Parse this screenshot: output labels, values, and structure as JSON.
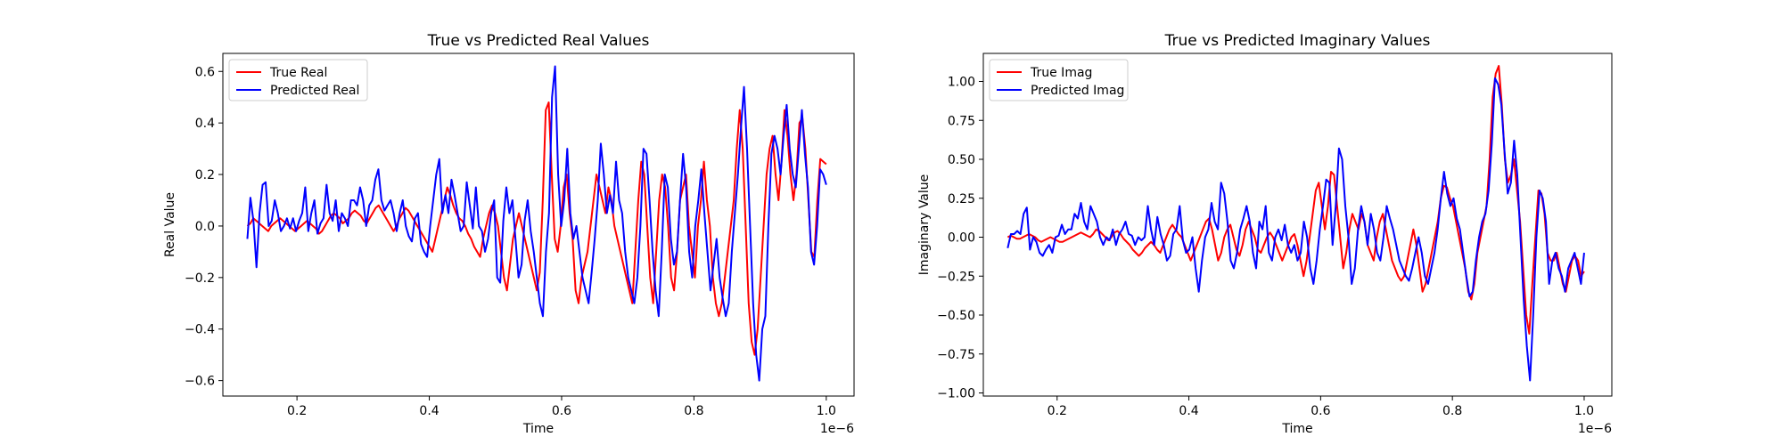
{
  "chart_data": [
    {
      "type": "line",
      "title": "True vs Predicted Real Values",
      "xlabel": "Time",
      "ylabel": "Real Value",
      "x_offset_text": "1e−6",
      "xlim": [
        0.088,
        1.042
      ],
      "ylim": [
        -0.66,
        0.67
      ],
      "xticks": [
        0.2,
        0.4,
        0.6,
        0.8,
        1.0
      ],
      "xtick_labels": [
        "0.2",
        "0.4",
        "0.6",
        "0.8",
        "1.0"
      ],
      "yticks": [
        -0.6,
        -0.4,
        -0.2,
        0.0,
        0.2,
        0.4,
        0.6
      ],
      "ytick_labels": [
        "−0.6",
        "−0.4",
        "−0.2",
        "0.0",
        "0.2",
        "0.4",
        "0.6"
      ],
      "legend_position": "upper-left",
      "x_start": 0.125,
      "x_end": 1.0,
      "series": [
        {
          "name": "True Real",
          "color": "#ff0000",
          "values": [
            0.0,
            0.01,
            0.03,
            0.02,
            0.01,
            0.0,
            -0.01,
            -0.02,
            0.0,
            0.01,
            0.02,
            0.03,
            0.02,
            0.01,
            0.0,
            -0.01,
            -0.02,
            -0.01,
            0.0,
            0.01,
            0.02,
            0.01,
            0.0,
            -0.01,
            -0.03,
            -0.02,
            0.0,
            0.02,
            0.04,
            0.05,
            0.04,
            0.03,
            0.01,
            0.02,
            0.03,
            0.05,
            0.06,
            0.05,
            0.04,
            0.02,
            0.01,
            0.03,
            0.05,
            0.07,
            0.08,
            0.06,
            0.04,
            0.02,
            0.0,
            -0.02,
            0.0,
            0.03,
            0.05,
            0.07,
            0.06,
            0.04,
            0.02,
            0.0,
            -0.02,
            -0.04,
            -0.06,
            -0.08,
            -0.1,
            -0.05,
            0.0,
            0.05,
            0.1,
            0.15,
            0.12,
            0.08,
            0.05,
            0.03,
            0.02,
            0.0,
            -0.03,
            -0.05,
            -0.08,
            -0.1,
            -0.12,
            -0.05,
            0.0,
            0.05,
            0.08,
            0.05,
            0.0,
            -0.1,
            -0.2,
            -0.25,
            -0.15,
            -0.05,
            0.0,
            0.05,
            0.0,
            -0.05,
            -0.1,
            -0.15,
            -0.2,
            -0.25,
            -0.18,
            0.1,
            0.45,
            0.48,
            0.2,
            -0.05,
            -0.1,
            0.0,
            0.15,
            0.2,
            0.05,
            -0.05,
            -0.25,
            -0.3,
            -0.2,
            -0.15,
            -0.1,
            0.0,
            0.1,
            0.2,
            0.15,
            0.1,
            0.05,
            0.15,
            0.1,
            0.0,
            -0.05,
            -0.1,
            -0.15,
            -0.2,
            -0.25,
            -0.3,
            -0.1,
            0.1,
            0.25,
            0.2,
            0.0,
            -0.2,
            -0.3,
            -0.1,
            0.1,
            0.2,
            0.15,
            0.0,
            -0.2,
            -0.25,
            -0.1,
            0.1,
            0.15,
            0.2,
            0.0,
            -0.1,
            -0.2,
            0.0,
            0.1,
            0.25,
            0.1,
            0.0,
            -0.2,
            -0.3,
            -0.35,
            -0.3,
            -0.2,
            -0.1,
            0.0,
            0.1,
            0.3,
            0.45,
            0.3,
            0.0,
            -0.3,
            -0.45,
            -0.5,
            -0.4,
            -0.2,
            0.0,
            0.2,
            0.3,
            0.35,
            0.2,
            0.1,
            0.25,
            0.45,
            0.35,
            0.2,
            0.1,
            0.2,
            0.4,
            0.42,
            0.3,
            0.1,
            -0.1,
            -0.12,
            0.1,
            0.26,
            0.25,
            0.24
          ]
        },
        {
          "name": "Predicted Real",
          "color": "#0000ff",
          "values": [
            -0.05,
            0.11,
            0.02,
            -0.16,
            0.05,
            0.16,
            0.17,
            0.0,
            0.02,
            0.1,
            0.05,
            -0.02,
            0.0,
            0.03,
            -0.01,
            0.03,
            -0.02,
            0.02,
            0.05,
            0.15,
            -0.02,
            0.05,
            0.1,
            -0.03,
            0.01,
            0.03,
            0.16,
            0.05,
            0.02,
            0.1,
            -0.02,
            0.05,
            0.03,
            0.0,
            0.1,
            0.1,
            0.08,
            0.15,
            0.1,
            0.0,
            0.08,
            0.1,
            0.18,
            0.22,
            0.1,
            0.06,
            0.08,
            0.1,
            0.05,
            -0.02,
            0.05,
            0.1,
            0.0,
            -0.04,
            -0.06,
            0.03,
            0.05,
            -0.07,
            -0.1,
            -0.12,
            0.0,
            0.1,
            0.2,
            0.26,
            0.05,
            0.12,
            0.05,
            0.18,
            0.12,
            0.05,
            -0.02,
            0.0,
            0.17,
            0.08,
            -0.01,
            0.15,
            0.0,
            -0.02,
            -0.1,
            -0.05,
            0.05,
            0.1,
            -0.2,
            -0.22,
            0.02,
            0.15,
            0.05,
            0.1,
            -0.05,
            -0.2,
            -0.15,
            0.02,
            0.1,
            -0.02,
            -0.1,
            -0.2,
            -0.3,
            -0.35,
            -0.1,
            0.05,
            0.5,
            0.62,
            0.2,
            0.0,
            0.1,
            0.3,
            0.05,
            -0.05,
            0.0,
            -0.1,
            -0.2,
            -0.25,
            -0.3,
            -0.18,
            -0.05,
            0.1,
            0.32,
            0.2,
            0.05,
            0.12,
            0.05,
            0.25,
            0.1,
            0.05,
            -0.1,
            -0.2,
            -0.25,
            -0.3,
            -0.2,
            0.0,
            0.3,
            0.28,
            0.1,
            -0.1,
            -0.25,
            -0.35,
            -0.1,
            0.2,
            0.15,
            -0.05,
            -0.15,
            -0.1,
            0.1,
            0.28,
            0.15,
            -0.1,
            -0.2,
            0.0,
            0.1,
            0.22,
            0.05,
            -0.1,
            -0.25,
            -0.15,
            -0.05,
            -0.2,
            -0.28,
            -0.35,
            -0.3,
            -0.1,
            0.05,
            0.2,
            0.38,
            0.54,
            0.3,
            0.0,
            -0.3,
            -0.5,
            -0.6,
            -0.4,
            -0.35,
            0.0,
            0.28,
            0.35,
            0.3,
            0.2,
            0.35,
            0.47,
            0.3,
            0.2,
            0.15,
            0.3,
            0.45,
            0.28,
            0.15,
            -0.1,
            -0.15,
            0.0,
            0.22,
            0.2,
            0.16
          ]
        }
      ]
    },
    {
      "type": "line",
      "title": "True vs Predicted Imaginary Values",
      "xlabel": "Time",
      "ylabel": "Imaginary Value",
      "x_offset_text": "1e−6",
      "xlim": [
        0.088,
        1.042
      ],
      "ylim": [
        -1.02,
        1.18
      ],
      "xticks": [
        0.2,
        0.4,
        0.6,
        0.8,
        1.0
      ],
      "xtick_labels": [
        "0.2",
        "0.4",
        "0.6",
        "0.8",
        "1.0"
      ],
      "yticks": [
        -1.0,
        -0.75,
        -0.5,
        -0.25,
        0.0,
        0.25,
        0.5,
        0.75,
        1.0
      ],
      "ytick_labels": [
        "−1.00",
        "−0.75",
        "−0.50",
        "−0.25",
        "0.00",
        "0.25",
        "0.50",
        "0.75",
        "1.00"
      ],
      "legend_position": "upper-left",
      "x_start": 0.125,
      "x_end": 1.0,
      "series": [
        {
          "name": "True Imag",
          "color": "#ff0000",
          "values": [
            0.0,
            0.01,
            0.0,
            -0.01,
            -0.01,
            0.0,
            0.01,
            0.02,
            0.01,
            0.0,
            -0.02,
            -0.03,
            -0.02,
            -0.01,
            0.0,
            -0.01,
            -0.02,
            -0.03,
            -0.03,
            -0.02,
            -0.01,
            0.0,
            0.01,
            0.02,
            0.03,
            0.02,
            0.01,
            0.0,
            0.02,
            0.05,
            0.04,
            0.02,
            0.0,
            -0.02,
            0.0,
            0.03,
            0.04,
            0.02,
            -0.01,
            -0.03,
            -0.05,
            -0.08,
            -0.1,
            -0.12,
            -0.1,
            -0.07,
            -0.05,
            -0.03,
            -0.05,
            -0.08,
            -0.1,
            -0.05,
            0.0,
            0.05,
            0.08,
            0.05,
            0.02,
            0.0,
            -0.05,
            -0.1,
            -0.15,
            -0.1,
            -0.05,
            0.0,
            0.05,
            0.1,
            0.12,
            0.05,
            -0.05,
            -0.15,
            -0.1,
            0.0,
            0.05,
            0.08,
            0.0,
            -0.08,
            -0.12,
            -0.05,
            0.05,
            0.1,
            0.05,
            0.0,
            -0.08,
            -0.1,
            -0.05,
            0.0,
            0.03,
            0.0,
            -0.05,
            -0.1,
            -0.15,
            -0.1,
            -0.05,
            0.0,
            0.02,
            -0.05,
            -0.15,
            -0.25,
            -0.15,
            0.0,
            0.15,
            0.3,
            0.35,
            0.2,
            0.05,
            0.2,
            0.42,
            0.4,
            0.2,
            0.0,
            -0.2,
            -0.1,
            0.05,
            0.15,
            0.1,
            0.05,
            0.15,
            0.1,
            -0.05,
            -0.1,
            -0.15,
            0.0,
            0.1,
            0.15,
            0.05,
            -0.05,
            -0.15,
            -0.2,
            -0.25,
            -0.28,
            -0.25,
            -0.15,
            -0.05,
            0.05,
            -0.05,
            -0.2,
            -0.35,
            -0.3,
            -0.2,
            -0.1,
            0.0,
            0.1,
            0.25,
            0.33,
            0.32,
            0.25,
            0.2,
            0.1,
            0.0,
            -0.1,
            -0.2,
            -0.35,
            -0.4,
            -0.3,
            -0.1,
            0.0,
            0.1,
            0.2,
            0.5,
            0.9,
            1.05,
            1.1,
            0.85,
            0.5,
            0.35,
            0.4,
            0.5,
            0.3,
            0.1,
            -0.2,
            -0.5,
            -0.62,
            -0.3,
            0.0,
            0.3,
            0.28,
            0.15,
            -0.1,
            -0.15,
            -0.15,
            -0.1,
            -0.2,
            -0.3,
            -0.35,
            -0.25,
            -0.15,
            -0.12,
            -0.15,
            -0.25,
            -0.22
          ]
        },
        {
          "name": "Predicted Imag",
          "color": "#0000ff",
          "values": [
            -0.07,
            0.02,
            0.02,
            0.04,
            0.02,
            0.15,
            0.19,
            -0.08,
            0.0,
            -0.03,
            -0.1,
            -0.12,
            -0.08,
            -0.05,
            -0.1,
            0.0,
            0.01,
            0.08,
            0.02,
            0.05,
            0.05,
            0.15,
            0.12,
            0.22,
            0.1,
            0.05,
            0.2,
            0.15,
            0.1,
            0.0,
            -0.05,
            0.0,
            -0.02,
            0.05,
            -0.05,
            0.02,
            0.05,
            0.1,
            0.02,
            0.01,
            -0.05,
            0.0,
            -0.02,
            0.0,
            0.2,
            0.05,
            -0.05,
            0.13,
            0.02,
            -0.05,
            -0.15,
            -0.12,
            0.02,
            0.05,
            0.2,
            -0.02,
            -0.1,
            -0.08,
            0.0,
            -0.2,
            -0.35,
            -0.15,
            0.0,
            0.05,
            0.22,
            0.1,
            0.05,
            0.35,
            0.28,
            0.1,
            -0.15,
            -0.2,
            -0.1,
            0.05,
            0.12,
            0.2,
            0.1,
            -0.1,
            -0.2,
            0.1,
            0.05,
            0.2,
            -0.1,
            -0.15,
            0.0,
            0.05,
            -0.02,
            0.08,
            -0.05,
            -0.1,
            -0.05,
            -0.15,
            -0.1,
            0.1,
            0.0,
            -0.2,
            -0.3,
            -0.15,
            0.05,
            0.2,
            0.37,
            0.35,
            -0.05,
            0.2,
            0.57,
            0.5,
            0.2,
            0.0,
            -0.3,
            -0.2,
            0.05,
            0.2,
            0.1,
            -0.05,
            0.15,
            0.05,
            -0.1,
            -0.15,
            0.0,
            0.2,
            0.12,
            0.05,
            -0.05,
            -0.15,
            -0.2,
            -0.25,
            -0.28,
            -0.2,
            -0.1,
            0.0,
            -0.1,
            -0.25,
            -0.3,
            -0.2,
            -0.1,
            0.05,
            0.25,
            0.42,
            0.28,
            0.2,
            0.25,
            0.12,
            0.05,
            -0.1,
            -0.25,
            -0.38,
            -0.35,
            -0.15,
            0.0,
            0.1,
            0.15,
            0.3,
            0.6,
            1.02,
            0.98,
            0.85,
            0.55,
            0.28,
            0.35,
            0.62,
            0.4,
            0.0,
            -0.4,
            -0.7,
            -0.92,
            -0.5,
            0.0,
            0.3,
            0.25,
            0.1,
            -0.3,
            -0.15,
            -0.1,
            -0.2,
            -0.25,
            -0.35,
            -0.2,
            -0.15,
            -0.1,
            -0.2,
            -0.3,
            -0.1
          ]
        }
      ]
    }
  ]
}
